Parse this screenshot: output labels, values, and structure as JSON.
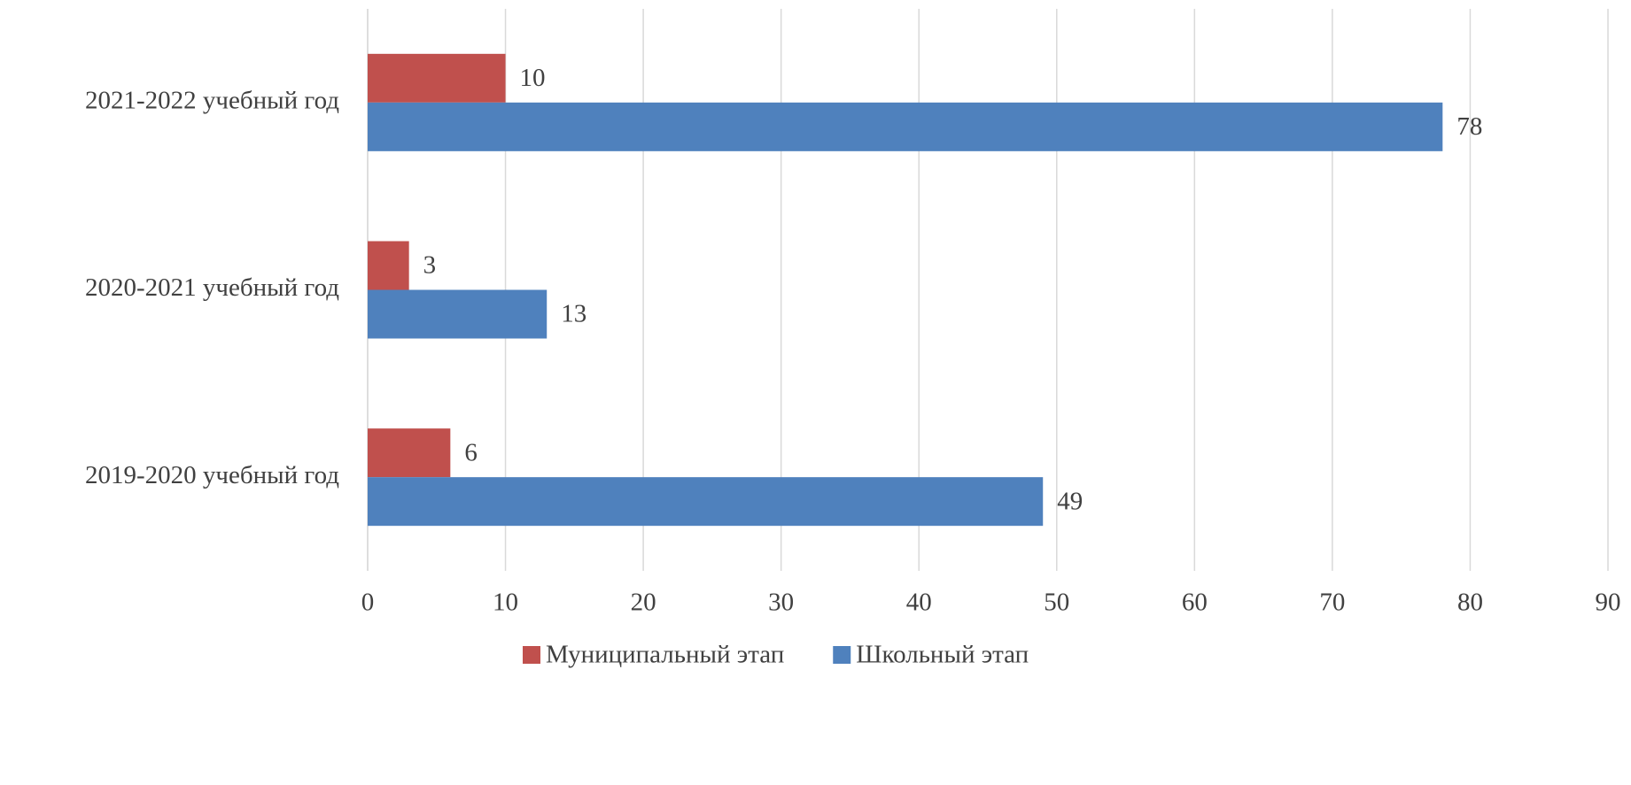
{
  "chart_data": {
    "type": "hbar",
    "categories": [
      "2019-2020 учебный год",
      "2020-2021 учебный год",
      "2021-2022 учебный год"
    ],
    "series": [
      {
        "name": "Муниципальный этап",
        "color": "#c0504d",
        "values": [
          6,
          3,
          10
        ]
      },
      {
        "name": "Школьный этап",
        "color": "#4f81bd",
        "values": [
          49,
          13,
          78
        ]
      }
    ],
    "xlim": [
      0,
      90
    ],
    "xticks": [
      0,
      10,
      20,
      30,
      40,
      50,
      60,
      70,
      80,
      90
    ],
    "grid": true,
    "legend": "bottom"
  }
}
